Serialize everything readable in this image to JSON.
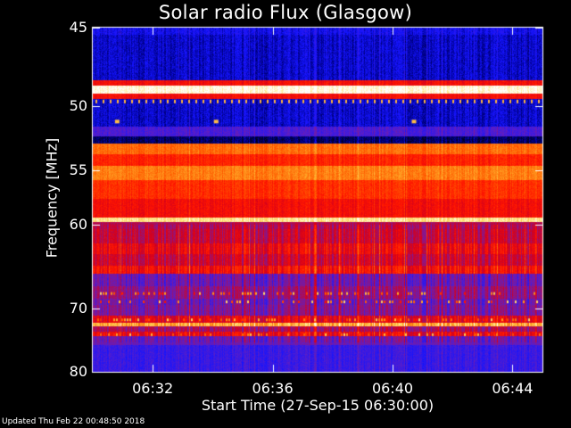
{
  "chart_data": {
    "type": "heatmap",
    "title": "Solar radio Flux (Glasgow)",
    "xlabel": "Start Time (27-Sep-15 06:30:00)",
    "ylabel": "Frequency [MHz]",
    "x_ticks": [
      "06:32",
      "06:36",
      "06:40",
      "06:44"
    ],
    "x_tick_minutes": [
      2,
      6,
      10,
      14
    ],
    "x_range_minutes": [
      0,
      15
    ],
    "y_ticks": [
      45,
      50,
      55,
      60,
      70,
      80
    ],
    "y_range": [
      45,
      80
    ],
    "y_scale": "reciprocal",
    "bands": [
      {
        "from": 44.5,
        "to": 45.4,
        "level": 0.15
      },
      {
        "from": 45.4,
        "to": 48.2,
        "level": 0.12
      },
      {
        "from": 48.2,
        "to": 48.6,
        "level": 0.55
      },
      {
        "from": 48.6,
        "to": 49.1,
        "level": 0.98
      },
      {
        "from": 49.1,
        "to": 49.5,
        "level": 0.55
      },
      {
        "from": 49.5,
        "to": 51.5,
        "level": 0.12
      },
      {
        "from": 51.5,
        "to": 52.2,
        "level": 0.25
      },
      {
        "from": 52.2,
        "to": 52.8,
        "level": 0.05
      },
      {
        "from": 52.8,
        "to": 53.6,
        "level": 0.72
      },
      {
        "from": 53.6,
        "to": 54.6,
        "level": 0.6
      },
      {
        "from": 54.6,
        "to": 55.8,
        "level": 0.75
      },
      {
        "from": 55.8,
        "to": 57.5,
        "level": 0.62
      },
      {
        "from": 57.5,
        "to": 59.3,
        "level": 0.55
      },
      {
        "from": 59.3,
        "to": 59.8,
        "level": 0.92
      },
      {
        "from": 59.8,
        "to": 60.5,
        "level": 0.42
      },
      {
        "from": 60.5,
        "to": 62.0,
        "level": 0.45
      },
      {
        "from": 62.0,
        "to": 63.2,
        "level": 0.52
      },
      {
        "from": 63.2,
        "to": 64.5,
        "level": 0.46
      },
      {
        "from": 64.5,
        "to": 65.5,
        "level": 0.55
      },
      {
        "from": 65.5,
        "to": 67.0,
        "level": 0.3
      },
      {
        "from": 67.0,
        "to": 68.6,
        "level": 0.36
      },
      {
        "from": 68.6,
        "to": 69.5,
        "level": 0.3
      },
      {
        "from": 69.5,
        "to": 71.0,
        "level": 0.33
      },
      {
        "from": 71.0,
        "to": 72.0,
        "level": 0.5
      },
      {
        "from": 72.0,
        "to": 72.5,
        "level": 0.82
      },
      {
        "from": 72.5,
        "to": 73.3,
        "level": 0.4
      },
      {
        "from": 73.3,
        "to": 74.0,
        "level": 0.52
      },
      {
        "from": 74.0,
        "to": 75.5,
        "level": 0.3
      },
      {
        "from": 75.5,
        "to": 80.5,
        "level": 0.22
      }
    ],
    "spikes": [
      {
        "freq": 51.1,
        "minute": 0.8,
        "level": 0.85
      },
      {
        "freq": 51.1,
        "minute": 4.1,
        "level": 0.85
      },
      {
        "freq": 51.1,
        "minute": 10.7,
        "level": 0.85
      }
    ]
  },
  "footer_text": "Updated Thu Feb 22 00:48:50 2018"
}
